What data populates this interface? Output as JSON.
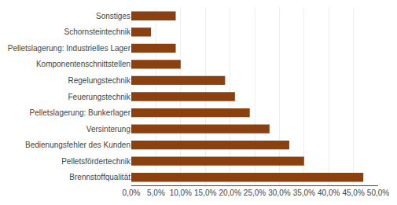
{
  "chart_data": {
    "type": "bar",
    "orientation": "horizontal",
    "categories": [
      "Brennstoffqualität",
      "Pelletsfördertechnik",
      "Bedienungsfehler des Kunden",
      "Versinterung",
      "Pelletslagerung: Bunkerlager",
      "Feuerungstechnik",
      "Regelungstechnik",
      "Komponentenschnittstellen",
      "Pelletslagerung: Industrielles Lager",
      "Schornsteintechnik",
      "Sonstiges"
    ],
    "values": [
      0.47,
      0.35,
      0.32,
      0.28,
      0.24,
      0.21,
      0.19,
      0.1,
      0.09,
      0.04,
      0.09
    ],
    "color": "#8B4010",
    "xlim": [
      0,
      0.5
    ],
    "xticks": [
      {
        "value": 0.0,
        "label": "0,0%"
      },
      {
        "value": 0.05,
        "label": "5,0%"
      },
      {
        "value": 0.1,
        "label": "10,0%"
      },
      {
        "value": 0.15,
        "label": "15,0%"
      },
      {
        "value": 0.2,
        "label": "20,0%"
      },
      {
        "value": 0.25,
        "label": "25,0%"
      },
      {
        "value": 0.3,
        "label": "30,0%"
      },
      {
        "value": 0.35,
        "label": "35,0%"
      },
      {
        "value": 0.4,
        "label": "40,0%"
      },
      {
        "value": 0.45,
        "label": "45,0%"
      },
      {
        "value": 0.5,
        "label": "50,0%"
      }
    ],
    "grid": true
  }
}
